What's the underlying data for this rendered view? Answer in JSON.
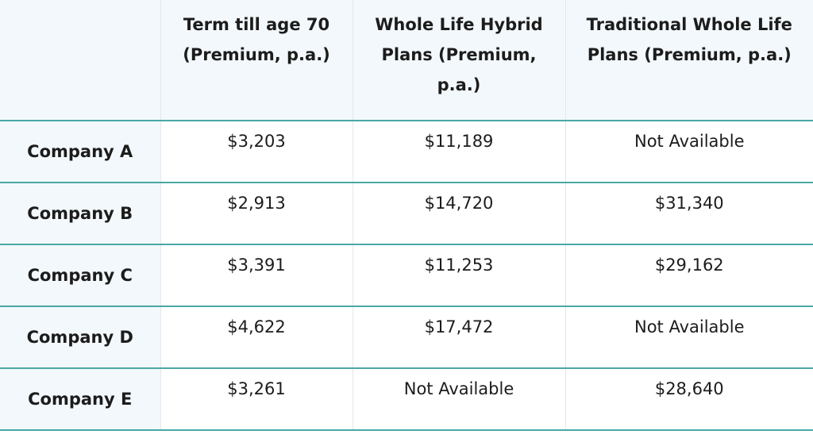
{
  "table": {
    "headers": [
      "",
      "Term till age 70 (Premium, p.a.)",
      "Whole Life Hybrid Plans (Premium, p.a.)",
      "Traditional Whole Life Plans (Premium, p.a.)"
    ],
    "rows": [
      {
        "company": "Company A",
        "term": "$3,203",
        "hybrid": "$11,189",
        "traditional": "Not Available"
      },
      {
        "company": "Company B",
        "term": "$2,913",
        "hybrid": "$14,720",
        "traditional": "$31,340"
      },
      {
        "company": "Company C",
        "term": "$3,391",
        "hybrid": "$11,253",
        "traditional": "$29,162"
      },
      {
        "company": "Company D",
        "term": "$4,622",
        "hybrid": "$17,472",
        "traditional": "Not Available"
      },
      {
        "company": "Company E",
        "term": "$3,261",
        "hybrid": "Not Available",
        "traditional": "$28,640"
      }
    ]
  },
  "colors": {
    "header_bg": "#f2f8fb",
    "row_rule": "#4aa8a6",
    "column_rule": "#e2e8ec"
  }
}
